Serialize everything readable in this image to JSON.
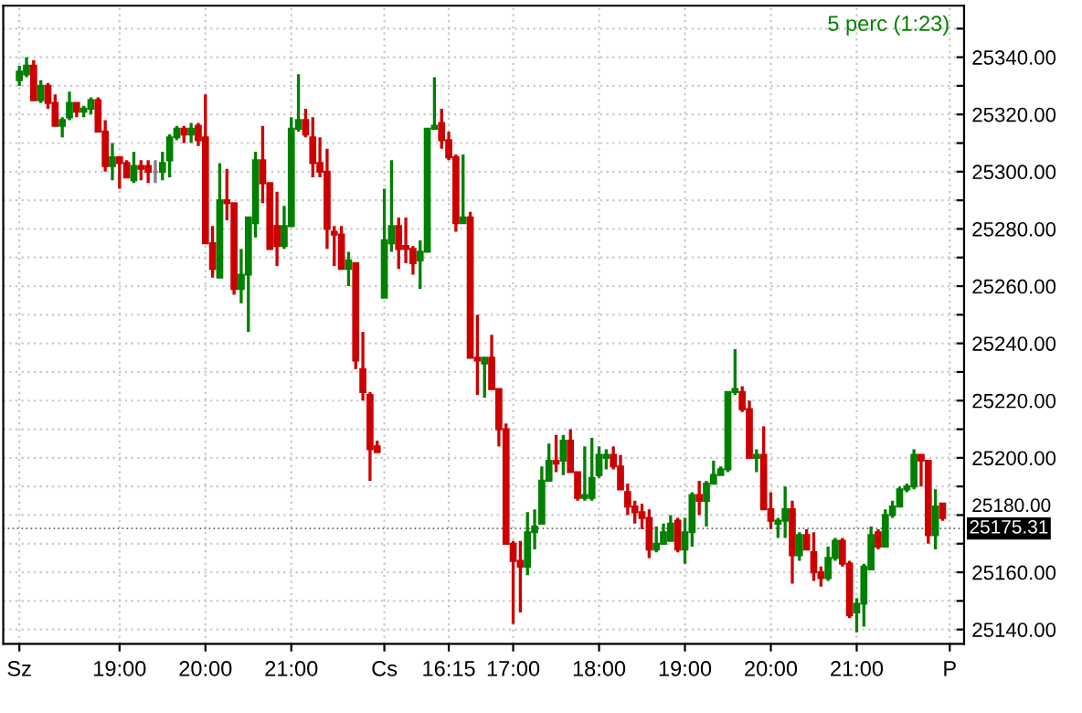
{
  "chart_data": {
    "type": "candlestick",
    "subtitle": "5 perc (1:23)",
    "categories": [
      "Sz",
      null,
      null,
      null,
      null,
      null,
      null,
      null,
      null,
      null,
      null,
      null,
      null,
      null,
      "19:00",
      null,
      null,
      null,
      null,
      null,
      null,
      null,
      null,
      null,
      null,
      null,
      "20:00",
      null,
      null,
      null,
      null,
      null,
      null,
      null,
      null,
      null,
      null,
      null,
      "21:00",
      null,
      null,
      null,
      null,
      null,
      null,
      null,
      null,
      null,
      null,
      null,
      null,
      "Cs",
      null,
      null,
      null,
      null,
      null,
      null,
      null,
      null,
      "16:15",
      null,
      null,
      null,
      null,
      null,
      null,
      null,
      null,
      "17:00",
      null,
      null,
      null,
      null,
      null,
      null,
      null,
      null,
      null,
      null,
      null,
      "18:00",
      null,
      null,
      null,
      null,
      null,
      null,
      null,
      null,
      null,
      null,
      null,
      "19:00",
      null,
      null,
      null,
      null,
      null,
      null,
      null,
      null,
      null,
      null,
      null,
      "20:00",
      null,
      null,
      null,
      null,
      null,
      null,
      null,
      null,
      null,
      null,
      null,
      "21:00",
      null,
      null,
      null,
      null,
      null,
      null,
      null,
      null,
      null,
      null,
      null,
      null,
      "P"
    ],
    "ohlc": [
      [
        25332,
        25337,
        25330,
        25335
      ],
      [
        25334,
        25340,
        25333,
        25337
      ],
      [
        25337,
        25339,
        25325,
        25325
      ],
      [
        25325,
        25332,
        25324,
        25330
      ],
      [
        25330,
        25331,
        25322,
        25324
      ],
      [
        25324,
        25327,
        25316,
        25316
      ],
      [
        25316,
        25319,
        25312,
        25318
      ],
      [
        25319,
        25328,
        25318,
        25324
      ],
      [
        25324,
        25324,
        25319,
        25321
      ],
      [
        25321,
        25323,
        25319,
        25322
      ],
      [
        25322,
        25326,
        25320,
        25325
      ],
      [
        25325,
        25326,
        25314,
        25314
      ],
      [
        25314,
        25318,
        25300,
        25302
      ],
      [
        25302,
        25310,
        25297,
        25305
      ],
      [
        25305,
        25305,
        25294,
        25303
      ],
      [
        25303,
        25304,
        25298,
        25298
      ],
      [
        25297,
        25307,
        25296,
        25302
      ],
      [
        25302,
        25304,
        25297,
        25301
      ],
      [
        25302,
        25304,
        25296,
        25300
      ],
      [
        25300,
        25304,
        25296,
        25300
      ],
      [
        25300,
        25307,
        25297,
        25303
      ],
      [
        25304,
        25313,
        25298,
        25312
      ],
      [
        25312,
        25316,
        25311,
        25315
      ],
      [
        25315,
        25316,
        25310,
        25313
      ],
      [
        25313,
        25317,
        25310,
        25315
      ],
      [
        25316,
        25317,
        25309,
        25311
      ],
      [
        25312,
        25327,
        25275,
        25275
      ],
      [
        25275,
        25281,
        25263,
        25266
      ],
      [
        25263,
        25303,
        25263,
        25290
      ],
      [
        25290,
        25301,
        25283,
        25289
      ],
      [
        25289,
        25289,
        25257,
        25259
      ],
      [
        25259,
        25273,
        25254,
        25264
      ],
      [
        25264,
        25284,
        25244,
        25284
      ],
      [
        25282,
        25307,
        25277,
        25304
      ],
      [
        25304,
        25316,
        25289,
        25296
      ],
      [
        25296,
        25296,
        25273,
        25273
      ],
      [
        25281,
        25293,
        25267,
        25274
      ],
      [
        25274,
        25288,
        25273,
        25281
      ],
      [
        25281,
        25319,
        25281,
        25315
      ],
      [
        25315,
        25334,
        25314,
        25318
      ],
      [
        25318,
        25322,
        25312,
        25313
      ],
      [
        25312,
        25319,
        25298,
        25303
      ],
      [
        25303,
        25312,
        25298,
        25300
      ],
      [
        25300,
        25308,
        25273,
        25280
      ],
      [
        25279,
        25281,
        25267,
        25278
      ],
      [
        25278,
        25281,
        25266,
        25266
      ],
      [
        25266,
        25272,
        25260,
        25269
      ],
      [
        25268,
        25268,
        25231,
        25234
      ],
      [
        25231,
        25244,
        25220,
        25223
      ],
      [
        25222,
        25223,
        25192,
        25203
      ],
      [
        25204,
        25206,
        25202,
        25202
      ],
      [
        25256,
        25294,
        25256,
        25276
      ],
      [
        25275,
        25304,
        25272,
        25281
      ],
      [
        25281,
        25284,
        25266,
        25273
      ],
      [
        25274,
        25284,
        25268,
        25273
      ],
      [
        25273,
        25274,
        25264,
        25268
      ],
      [
        25269,
        25276,
        25259,
        25272
      ],
      [
        25272,
        25315,
        25272,
        25315
      ],
      [
        25315,
        25333,
        25315,
        25316
      ],
      [
        25317,
        25322,
        25308,
        25311
      ],
      [
        25311,
        25314,
        25304,
        25305
      ],
      [
        25305,
        25306,
        25279,
        25282
      ],
      [
        25282,
        25306,
        25282,
        25284
      ],
      [
        25284,
        25286,
        25235,
        25235
      ],
      [
        25235,
        25250,
        25222,
        25234
      ],
      [
        25233,
        25235,
        25221,
        25235
      ],
      [
        25235,
        25243,
        25224,
        25224
      ],
      [
        25224,
        25224,
        25204,
        25210
      ],
      [
        25210,
        25212,
        25170,
        25170
      ],
      [
        25170,
        25171,
        25142,
        25164
      ],
      [
        25164,
        25171,
        25146,
        25162
      ],
      [
        25162,
        25181,
        25159,
        25174
      ],
      [
        25174,
        25182,
        25168,
        25176
      ],
      [
        25177,
        25197,
        25177,
        25192
      ],
      [
        25192,
        25205,
        25192,
        25199
      ],
      [
        25199,
        25208,
        25195,
        25198
      ],
      [
        25199,
        25208,
        25194,
        25206
      ],
      [
        25206,
        25210,
        25195,
        25195
      ],
      [
        25195,
        25195,
        25185,
        25186
      ],
      [
        25186,
        25204,
        25185,
        25187
      ],
      [
        25186,
        25207,
        25185,
        25193
      ],
      [
        25194,
        25204,
        25193,
        25201
      ],
      [
        25200,
        25203,
        25196,
        25201
      ],
      [
        25201,
        25204,
        25196,
        25197
      ],
      [
        25197,
        25201,
        25189,
        25189
      ],
      [
        25188,
        25191,
        25180,
        25183
      ],
      [
        25183,
        25185,
        25177,
        25181
      ],
      [
        25181,
        25184,
        25175,
        25179
      ],
      [
        25179,
        25182,
        25165,
        25168
      ],
      [
        25168,
        25176,
        25167,
        25170
      ],
      [
        25170,
        25177,
        25170,
        25174
      ],
      [
        25171,
        25180,
        25171,
        25177
      ],
      [
        25178,
        25179,
        25167,
        25168
      ],
      [
        25168,
        25179,
        25163,
        25174
      ],
      [
        25174,
        25188,
        25169,
        25187
      ],
      [
        25187,
        25192,
        25180,
        25185
      ],
      [
        25185,
        25192,
        25176,
        25191
      ],
      [
        25191,
        25199,
        25191,
        25194
      ],
      [
        25194,
        25197,
        25194,
        25196
      ],
      [
        25196,
        25223,
        25195,
        25223
      ],
      [
        25223,
        25238,
        25222,
        25224
      ],
      [
        25223,
        25225,
        25216,
        25217
      ],
      [
        25217,
        25220,
        25200,
        25200
      ],
      [
        25200,
        25203,
        25195,
        25201
      ],
      [
        25201,
        25211,
        25182,
        25182
      ],
      [
        25182,
        25188,
        25175,
        25178
      ],
      [
        25177,
        25179,
        25172,
        25178
      ],
      [
        25178,
        25190,
        25172,
        25182
      ],
      [
        25182,
        25185,
        25156,
        25166
      ],
      [
        25166,
        25174,
        25164,
        25173
      ],
      [
        25173,
        25175,
        25168,
        25168
      ],
      [
        25167,
        25174,
        25157,
        25160
      ],
      [
        25160,
        25162,
        25155,
        25158
      ],
      [
        25158,
        25169,
        25157,
        25165
      ],
      [
        25165,
        25172,
        25164,
        25171
      ],
      [
        25171,
        25172,
        25162,
        25163
      ],
      [
        25163,
        25164,
        25144,
        25145
      ],
      [
        25146,
        25151,
        25139,
        25149
      ],
      [
        25149,
        25163,
        25141,
        25162
      ],
      [
        25161,
        25176,
        25161,
        25173
      ],
      [
        25174,
        25175,
        25168,
        25169
      ],
      [
        25169,
        25182,
        25169,
        25180
      ],
      [
        25180,
        25185,
        25179,
        25183
      ],
      [
        25183,
        25190,
        25183,
        25189
      ],
      [
        25189,
        25191,
        25188,
        25190
      ],
      [
        25190,
        25203,
        25189,
        25201
      ],
      [
        25201,
        25201,
        25190,
        25199
      ],
      [
        25199,
        25199,
        25170,
        25173
      ],
      [
        25173,
        25189,
        25168,
        25183
      ],
      [
        25184,
        25184,
        25178,
        25179
      ],
      null
    ],
    "colors": [
      "#008000",
      "#008000",
      "#cc0000",
      "#008000",
      "#cc0000",
      "#cc0000",
      "#008000",
      "#008000",
      "#cc0000",
      "#008000",
      "#008000",
      "#cc0000",
      "#cc0000",
      "#008000",
      "#cc0000",
      "#cc0000",
      "#008000",
      "#cc0000",
      "#cc0000",
      "#808080",
      "#008000",
      "#008000",
      "#008000",
      "#cc0000",
      "#008000",
      "#cc0000",
      "#cc0000",
      "#cc0000",
      "#008000",
      "#cc0000",
      "#cc0000",
      "#008000",
      "#008000",
      "#008000",
      "#cc0000",
      "#cc0000",
      "#cc0000",
      "#008000",
      "#008000",
      "#008000",
      "#cc0000",
      "#cc0000",
      "#cc0000",
      "#cc0000",
      "#cc0000",
      "#cc0000",
      "#008000",
      "#cc0000",
      "#cc0000",
      "#cc0000",
      "#cc0000",
      "#008000",
      "#008000",
      "#cc0000",
      "#cc0000",
      "#cc0000",
      "#008000",
      "#008000",
      "#008000",
      "#cc0000",
      "#cc0000",
      "#cc0000",
      "#008000",
      "#cc0000",
      "#cc0000",
      "#008000",
      "#cc0000",
      "#cc0000",
      "#cc0000",
      "#cc0000",
      "#cc0000",
      "#008000",
      "#008000",
      "#008000",
      "#008000",
      "#cc0000",
      "#008000",
      "#cc0000",
      "#cc0000",
      "#008000",
      "#008000",
      "#008000",
      "#008000",
      "#cc0000",
      "#cc0000",
      "#cc0000",
      "#cc0000",
      "#cc0000",
      "#cc0000",
      "#008000",
      "#008000",
      "#008000",
      "#cc0000",
      "#008000",
      "#008000",
      "#cc0000",
      "#008000",
      "#008000",
      "#008000",
      "#008000",
      "#008000",
      "#cc0000",
      "#cc0000",
      "#008000",
      "#cc0000",
      "#cc0000",
      "#008000",
      "#008000",
      "#cc0000",
      "#008000",
      "#cc0000",
      "#cc0000",
      "#cc0000",
      "#008000",
      "#008000",
      "#cc0000",
      "#cc0000",
      "#008000",
      "#008000",
      "#008000",
      "#cc0000",
      "#008000",
      "#008000",
      "#008000",
      "#008000",
      "#008000",
      "#cc0000",
      "#cc0000",
      "#008000",
      "#cc0000",
      null
    ],
    "ylim": [
      25135,
      25358
    ],
    "yticks": [
      {
        "value": 25140,
        "label": "25140.00"
      },
      {
        "value": 25150,
        "label": null
      },
      {
        "value": 25160,
        "label": "25160.00"
      },
      {
        "value": 25170,
        "label": null
      },
      {
        "value": 25180,
        "label": "25180.00"
      },
      {
        "value": 25190,
        "label": null
      },
      {
        "value": 25200,
        "label": "25200.00"
      },
      {
        "value": 25210,
        "label": null
      },
      {
        "value": 25220,
        "label": "25220.00"
      },
      {
        "value": 25230,
        "label": null
      },
      {
        "value": 25240,
        "label": "25240.00"
      },
      {
        "value": 25250,
        "label": null
      },
      {
        "value": 25260,
        "label": "25260.00"
      },
      {
        "value": 25270,
        "label": null
      },
      {
        "value": 25280,
        "label": "25280.00"
      },
      {
        "value": 25290,
        "label": null
      },
      {
        "value": 25300,
        "label": "25300.00"
      },
      {
        "value": 25310,
        "label": null
      },
      {
        "value": 25320,
        "label": "25320.00"
      },
      {
        "value": 25330,
        "label": null
      },
      {
        "value": 25340,
        "label": "25340.00"
      },
      {
        "value": 25350,
        "label": null
      }
    ],
    "ref_lines": [
      {
        "axis": "y",
        "value": 25175.31,
        "label": "25175.31",
        "color": "#000000"
      }
    ],
    "grid": true
  }
}
